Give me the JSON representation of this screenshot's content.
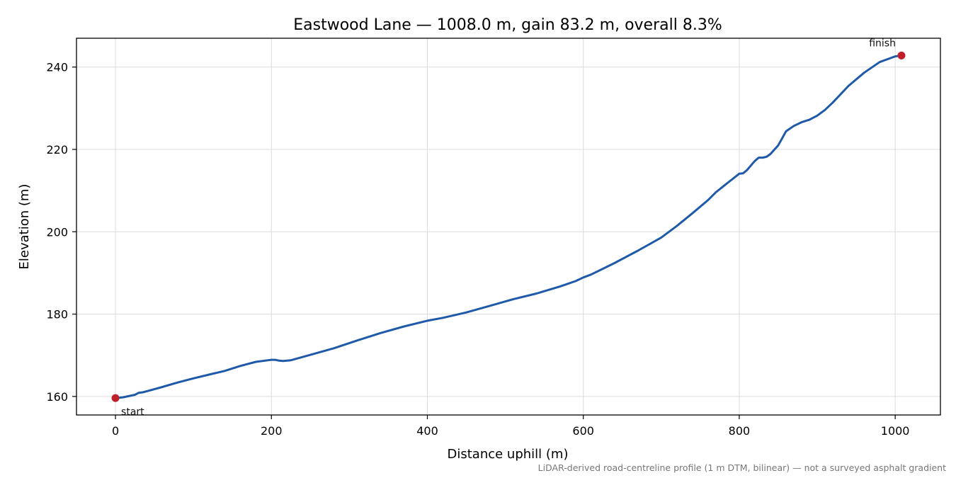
{
  "chart_data": {
    "type": "line",
    "title": "Eastwood Lane — 1008.0 m, gain 83.2 m, overall 8.3%",
    "xlabel": "Distance uphill (m)",
    "ylabel": "Elevation (m)",
    "xlim": [
      -50,
      1058
    ],
    "ylim": [
      155.5,
      247
    ],
    "xticks": [
      0,
      200,
      400,
      600,
      800,
      1000
    ],
    "yticks": [
      160,
      180,
      200,
      220,
      240
    ],
    "grid": true,
    "footnote": "LiDAR-derived road-centreline profile (1 m DTM, bilinear) — not a surveyed asphalt gradient",
    "colors": {
      "line": "#1f5aa8",
      "markers": "#c0202a"
    },
    "series": [
      {
        "x": [
          0,
          10,
          25,
          30,
          35,
          45,
          60,
          80,
          100,
          120,
          140,
          160,
          180,
          200,
          205,
          210,
          215,
          225,
          250,
          280,
          310,
          340,
          370,
          400,
          420,
          450,
          480,
          510,
          540,
          570,
          590,
          600,
          610,
          640,
          670,
          700,
          720,
          740,
          760,
          770,
          780,
          790,
          800,
          805,
          810,
          820,
          825,
          830,
          835,
          840,
          850,
          860,
          870,
          880,
          890,
          900,
          910,
          920,
          940,
          960,
          980,
          1000,
          1008
        ],
        "y": [
          159.6,
          159.8,
          160.4,
          160.9,
          161.0,
          161.5,
          162.3,
          163.4,
          164.4,
          165.3,
          166.2,
          167.4,
          168.4,
          168.9,
          168.9,
          168.7,
          168.6,
          168.8,
          170.1,
          171.7,
          173.6,
          175.4,
          177.0,
          178.4,
          179.1,
          180.4,
          182.0,
          183.6,
          185.0,
          186.7,
          188.0,
          188.9,
          189.6,
          192.4,
          195.4,
          198.6,
          201.4,
          204.5,
          207.7,
          209.6,
          211.1,
          212.6,
          214.1,
          214.2,
          215.0,
          217.2,
          218.0,
          218.0,
          218.2,
          218.9,
          221.0,
          224.4,
          225.7,
          226.6,
          227.2,
          228.2,
          229.6,
          231.4,
          235.4,
          238.6,
          241.2,
          242.6,
          242.8
        ]
      }
    ],
    "annotations": [
      {
        "text": "start",
        "x": 0,
        "y": 159.6
      },
      {
        "text": "finish",
        "x": 1008,
        "y": 242.8
      }
    ]
  }
}
